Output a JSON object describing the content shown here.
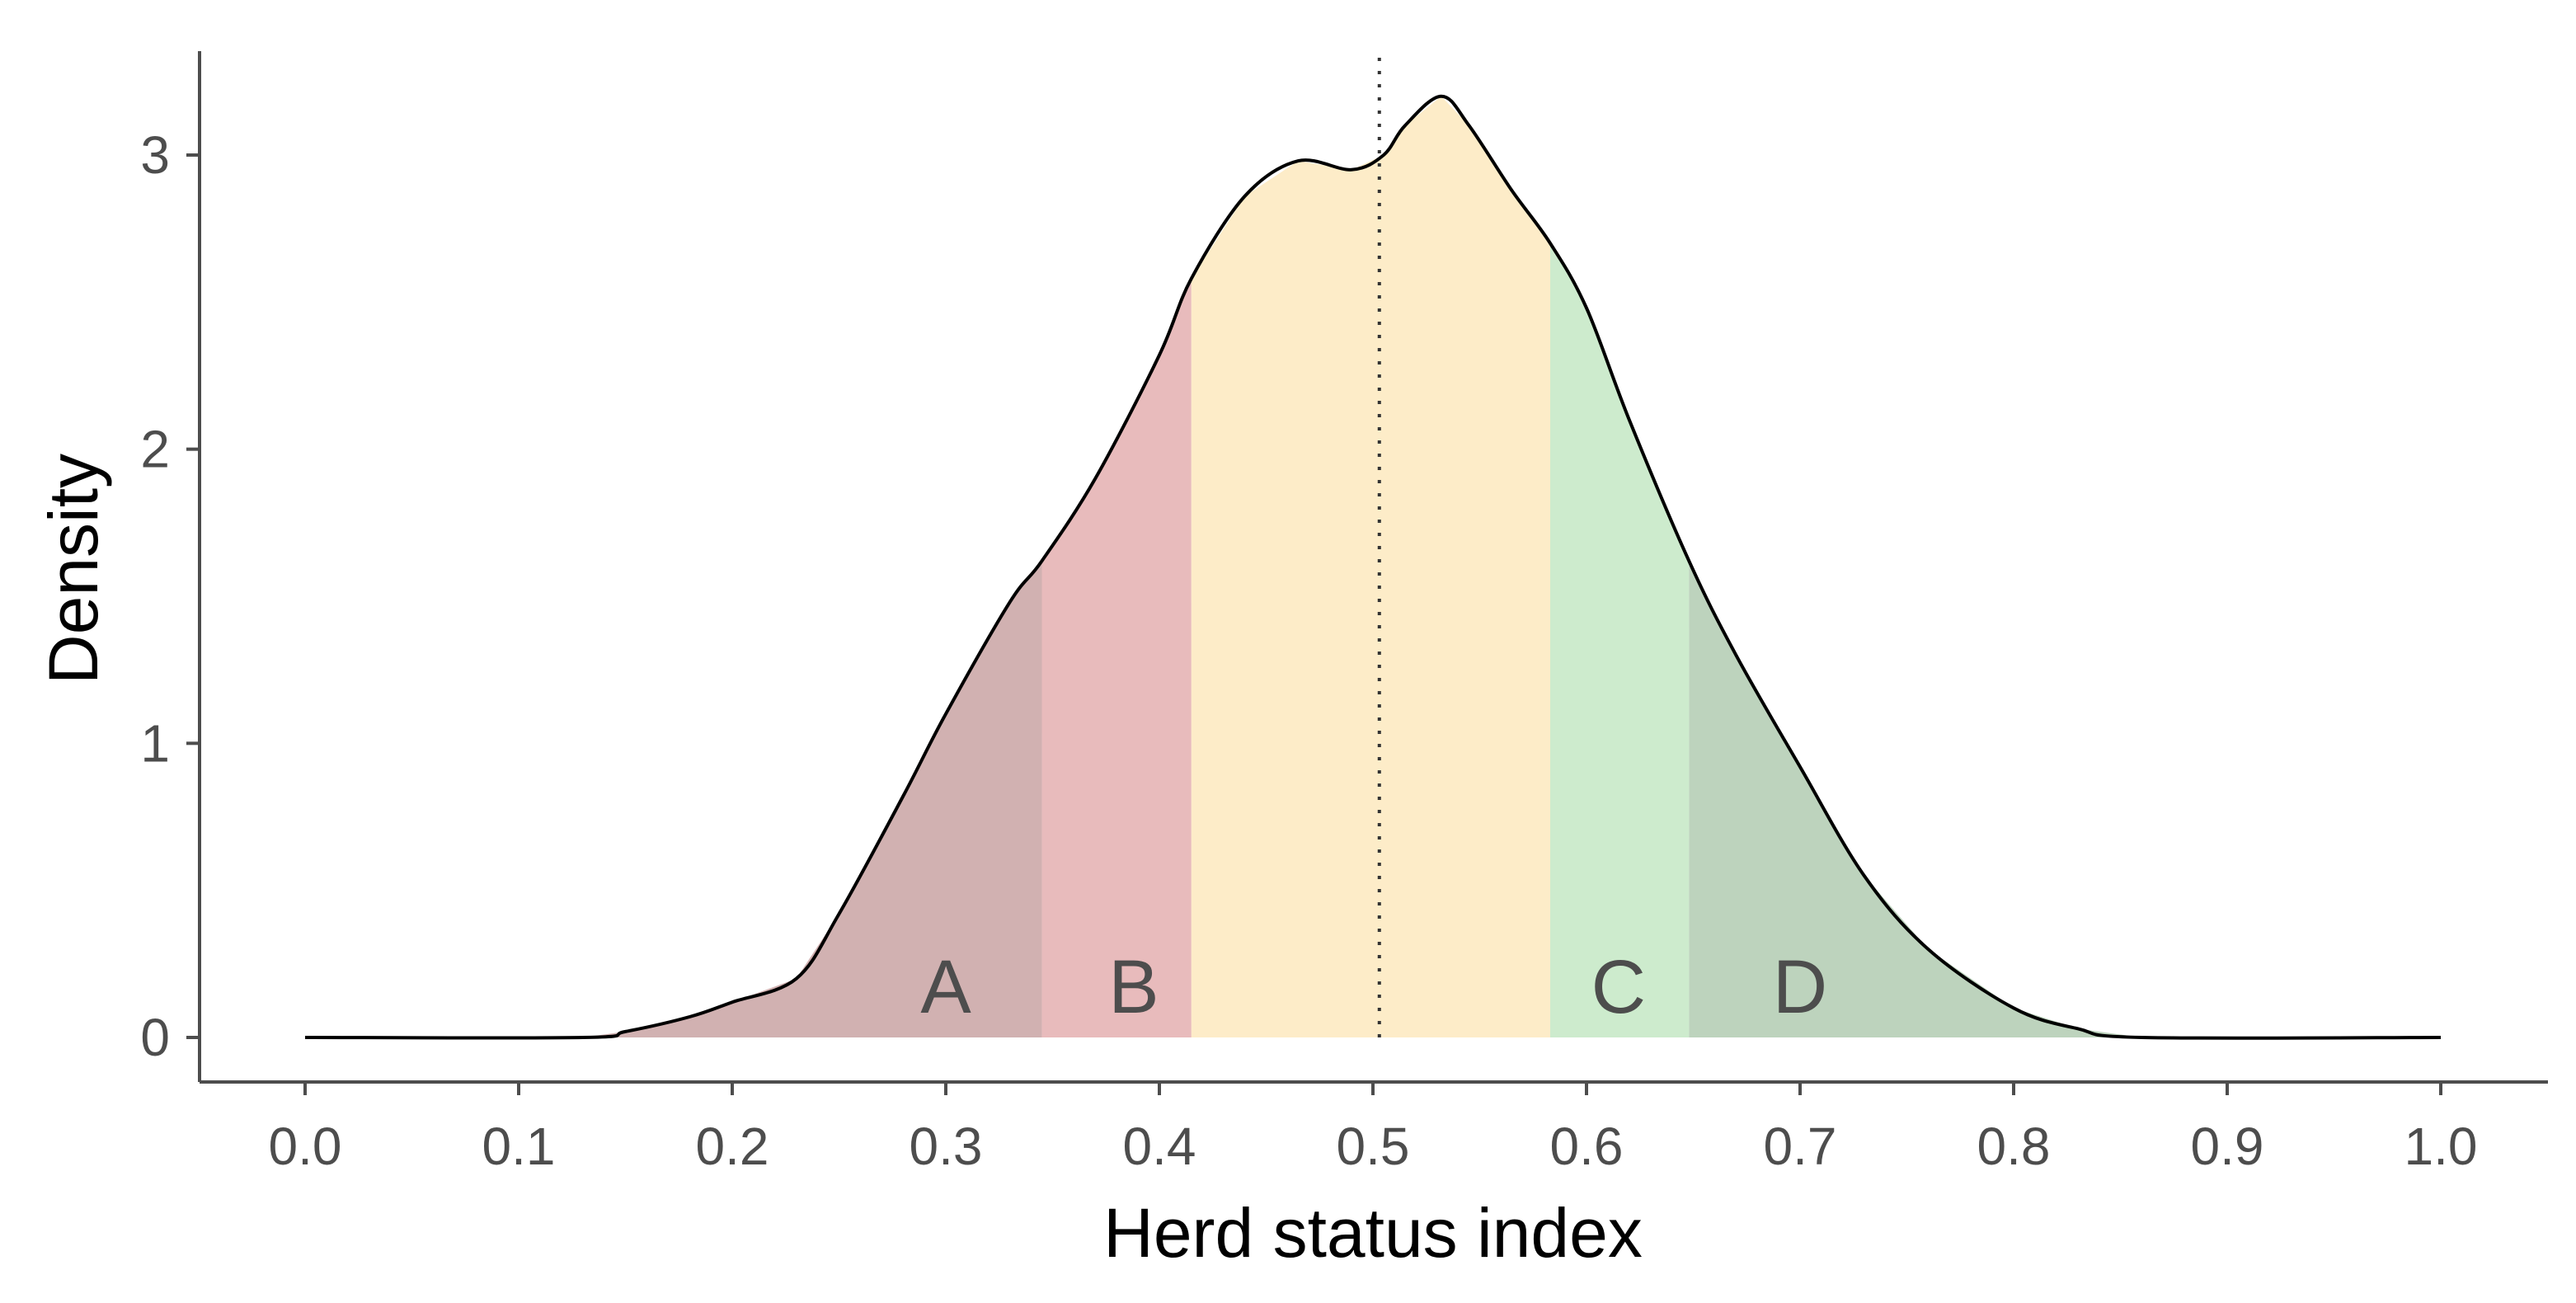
{
  "chart_data": {
    "type": "area",
    "title": "",
    "xlabel": "Herd status index",
    "ylabel": "Density",
    "xlim": [
      0.0,
      1.0
    ],
    "ylim": [
      0,
      3.3
    ],
    "xticks": [
      "0.0",
      "0.1",
      "0.2",
      "0.3",
      "0.4",
      "0.5",
      "0.6",
      "0.7",
      "0.8",
      "0.9",
      "1.0"
    ],
    "yticks": [
      "0",
      "1",
      "2",
      "3"
    ],
    "grid": false,
    "legend": "none",
    "curve": {
      "x": [
        0.0,
        0.13,
        0.15,
        0.18,
        0.2,
        0.23,
        0.25,
        0.28,
        0.3,
        0.33,
        0.345,
        0.37,
        0.4,
        0.415,
        0.44,
        0.465,
        0.49,
        0.505,
        0.515,
        0.532,
        0.545,
        0.565,
        0.583,
        0.6,
        0.62,
        0.648,
        0.67,
        0.7,
        0.73,
        0.76,
        0.8,
        0.83,
        0.86,
        1.0
      ],
      "y": [
        0.0,
        0.0,
        0.02,
        0.07,
        0.12,
        0.2,
        0.42,
        0.82,
        1.1,
        1.48,
        1.62,
        1.9,
        2.32,
        2.58,
        2.86,
        2.98,
        2.95,
        3.0,
        3.1,
        3.2,
        3.1,
        2.88,
        2.7,
        2.48,
        2.1,
        1.62,
        1.3,
        0.92,
        0.55,
        0.3,
        0.1,
        0.03,
        0.0,
        0.0
      ]
    },
    "bands": [
      {
        "label": "A",
        "from": 0.0,
        "to": 0.345,
        "color": "#d1b1b1"
      },
      {
        "label": "B",
        "from": 0.345,
        "to": 0.415,
        "color": "#e8bbbc"
      },
      {
        "label": "",
        "from": 0.415,
        "to": 0.583,
        "color": "#fdecc8"
      },
      {
        "label": "C",
        "from": 0.583,
        "to": 0.648,
        "color": "#cdebcd"
      },
      {
        "label": "D",
        "from": 0.648,
        "to": 1.0,
        "color": "#bdd3bd"
      }
    ],
    "band_label_x": {
      "A": 0.3,
      "B": 0.388,
      "C": 0.615,
      "D": 0.7
    },
    "reference_line": {
      "x": 0.503,
      "style": "dotted",
      "color": "#333333"
    },
    "line_color": "#000000"
  }
}
